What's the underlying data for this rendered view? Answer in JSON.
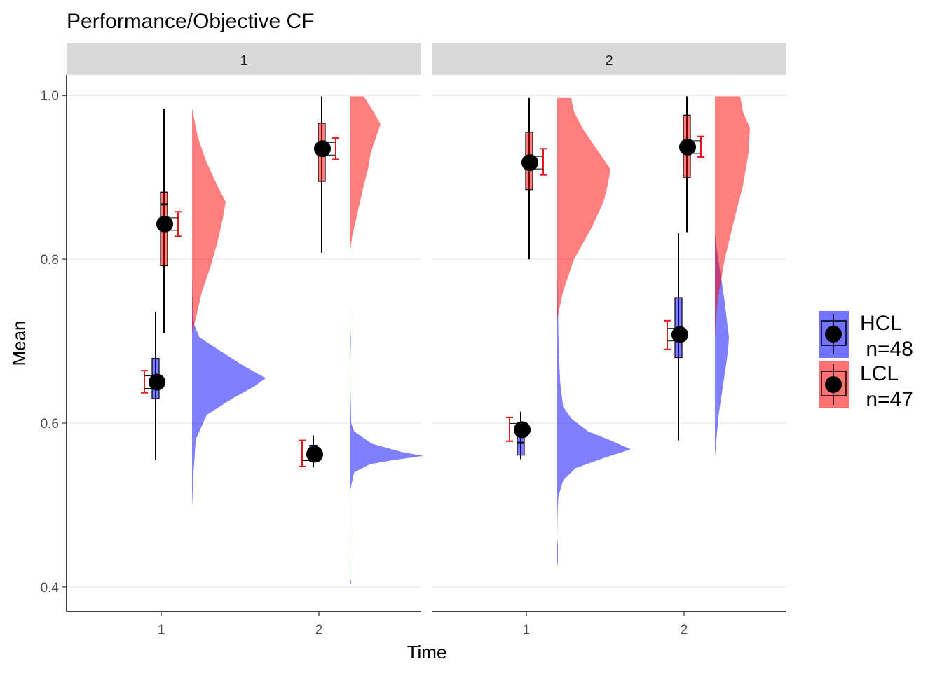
{
  "chart_data": {
    "type": "raincloud",
    "title": "Performance/Objective CF",
    "xlabel": "Time",
    "ylabel": "Mean",
    "ylim": [
      0.37,
      1.025
    ],
    "yticks": [
      "0.4",
      "0.6",
      "0.8",
      "1.0"
    ],
    "ytick_values": [
      0.4,
      0.6,
      0.8,
      1.0
    ],
    "categories": [
      "1",
      "2"
    ],
    "grid": true,
    "legend_position": "right",
    "colors": {
      "HCL": "#0000ff",
      "LCL": "#ff0000",
      "errorbar": "#e41a1c",
      "strip": "#d9d9d9",
      "point": "#000000"
    },
    "legend": [
      {
        "key": "HCL",
        "line1": "HCL",
        "line2": " n=48",
        "color": "#0000ff"
      },
      {
        "key": "LCL",
        "line1": "LCL",
        "line2": " n=47",
        "color": "#ff0000"
      }
    ],
    "facets": [
      {
        "label": "1",
        "groups": [
          {
            "series": "HCL",
            "time": "1",
            "mean": 0.65,
            "se": [
              0.637,
              0.664
            ],
            "box": {
              "min": 0.555,
              "q1": 0.63,
              "median": 0.648,
              "q3": 0.679,
              "max": 0.736
            },
            "density": [
              [
                0.497,
                0
              ],
              [
                0.54,
                0.02
              ],
              [
                0.58,
                0.05
              ],
              [
                0.61,
                0.2
              ],
              [
                0.63,
                0.55
              ],
              [
                0.645,
                0.85
              ],
              [
                0.655,
                1.0
              ],
              [
                0.67,
                0.7
              ],
              [
                0.69,
                0.35
              ],
              [
                0.705,
                0.1
              ],
              [
                0.72,
                0.03
              ],
              [
                0.74,
                0.01
              ],
              [
                0.778,
                0
              ]
            ]
          },
          {
            "series": "LCL",
            "time": "1",
            "mean": 0.843,
            "se": [
              0.828,
              0.858
            ],
            "box": {
              "min": 0.71,
              "q1": 0.792,
              "median": 0.867,
              "q3": 0.882,
              "max": 0.984
            },
            "density": [
              [
                0.71,
                0
              ],
              [
                0.73,
                0.03
              ],
              [
                0.76,
                0.07
              ],
              [
                0.79,
                0.13
              ],
              [
                0.82,
                0.18
              ],
              [
                0.85,
                0.22
              ],
              [
                0.87,
                0.24
              ],
              [
                0.89,
                0.18
              ],
              [
                0.92,
                0.1
              ],
              [
                0.95,
                0.04
              ],
              [
                0.984,
                0
              ]
            ]
          },
          {
            "series": "HCL",
            "time": "2",
            "mean": 0.562,
            "se": [
              0.547,
              0.579
            ],
            "box": {
              "min": 0.546,
              "q1": 0.553,
              "median": 0.562,
              "q3": 0.573,
              "max": 0.585
            },
            "density": [
              [
                0.403,
                0
              ],
              [
                0.405,
                0.02
              ],
              [
                0.41,
                0.01
              ],
              [
                0.5,
                0.001
              ],
              [
                0.52,
                0.01
              ],
              [
                0.54,
                0.06
              ],
              [
                0.55,
                0.28
              ],
              [
                0.555,
                0.6
              ],
              [
                0.56,
                1.0
              ],
              [
                0.565,
                0.7
              ],
              [
                0.575,
                0.3
              ],
              [
                0.59,
                0.06
              ],
              [
                0.6,
                0.02
              ],
              [
                0.64,
                0.01
              ],
              [
                0.66,
                0.005
              ],
              [
                0.7,
                0.015
              ],
              [
                0.743,
                0
              ]
            ]
          },
          {
            "series": "LCL",
            "time": "2",
            "mean": 0.935,
            "se": [
              0.922,
              0.948
            ],
            "box": {
              "min": 0.808,
              "q1": 0.895,
              "median": 0.935,
              "q3": 0.966,
              "max": 0.999
            },
            "density": [
              [
                0.808,
                0
              ],
              [
                0.83,
                0.02
              ],
              [
                0.86,
                0.06
              ],
              [
                0.89,
                0.1
              ],
              [
                0.91,
                0.13
              ],
              [
                0.93,
                0.15
              ],
              [
                0.95,
                0.19
              ],
              [
                0.965,
                0.22
              ],
              [
                0.98,
                0.17
              ],
              [
                0.999,
                0.1
              ],
              [
                0.999,
                0
              ]
            ]
          }
        ]
      },
      {
        "label": "2",
        "groups": [
          {
            "series": "HCL",
            "time": "1",
            "mean": 0.592,
            "se": [
              0.578,
              0.607
            ],
            "box": {
              "min": 0.556,
              "q1": 0.561,
              "median": 0.576,
              "q3": 0.6,
              "max": 0.614
            },
            "density": [
              [
                0.426,
                0
              ],
              [
                0.43,
                0.01
              ],
              [
                0.45,
                0.01
              ],
              [
                0.46,
                0
              ],
              [
                0.49,
                0.005
              ],
              [
                0.51,
                0.015
              ],
              [
                0.53,
                0.08
              ],
              [
                0.545,
                0.25
              ],
              [
                0.558,
                0.65
              ],
              [
                0.568,
                1.0
              ],
              [
                0.578,
                0.75
              ],
              [
                0.59,
                0.42
              ],
              [
                0.605,
                0.2
              ],
              [
                0.62,
                0.08
              ],
              [
                0.65,
                0.04
              ],
              [
                0.69,
                0.02
              ],
              [
                0.74,
                0.01
              ],
              [
                0.788,
                0
              ]
            ]
          },
          {
            "series": "LCL",
            "time": "1",
            "mean": 0.918,
            "se": [
              0.903,
              0.935
            ],
            "box": {
              "min": 0.8,
              "q1": 0.885,
              "median": 0.92,
              "q3": 0.955,
              "max": 0.997
            },
            "density": [
              [
                0.726,
                0
              ],
              [
                0.76,
                0.04
              ],
              [
                0.8,
                0.12
              ],
              [
                0.84,
                0.25
              ],
              [
                0.87,
                0.33
              ],
              [
                0.89,
                0.36
              ],
              [
                0.91,
                0.38
              ],
              [
                0.93,
                0.3
              ],
              [
                0.96,
                0.18
              ],
              [
                0.98,
                0.12
              ],
              [
                0.997,
                0.1
              ],
              [
                0.997,
                0
              ]
            ]
          },
          {
            "series": "HCL",
            "time": "2",
            "mean": 0.708,
            "se": [
              0.69,
              0.725
            ],
            "box": {
              "min": 0.579,
              "q1": 0.68,
              "median": 0.702,
              "q3": 0.753,
              "max": 0.832
            },
            "density": [
              [
                0.559,
                0
              ],
              [
                0.58,
                0.02
              ],
              [
                0.61,
                0.05
              ],
              [
                0.64,
                0.1
              ],
              [
                0.67,
                0.15
              ],
              [
                0.69,
                0.18
              ],
              [
                0.705,
                0.19
              ],
              [
                0.72,
                0.17
              ],
              [
                0.75,
                0.13
              ],
              [
                0.78,
                0.08
              ],
              [
                0.81,
                0.03
              ],
              [
                0.832,
                0
              ]
            ]
          },
          {
            "series": "LCL",
            "time": "2",
            "mean": 0.937,
            "se": [
              0.925,
              0.95
            ],
            "box": {
              "min": 0.833,
              "q1": 0.9,
              "median": 0.935,
              "q3": 0.976,
              "max": 0.999
            },
            "density": [
              [
                0.709,
                0
              ],
              [
                0.75,
                0.02
              ],
              [
                0.8,
                0.07
              ],
              [
                0.85,
                0.14
              ],
              [
                0.89,
                0.2
              ],
              [
                0.93,
                0.24
              ],
              [
                0.96,
                0.25
              ],
              [
                0.98,
                0.2
              ],
              [
                0.999,
                0.18
              ],
              [
                0.999,
                0
              ]
            ]
          }
        ]
      }
    ]
  }
}
